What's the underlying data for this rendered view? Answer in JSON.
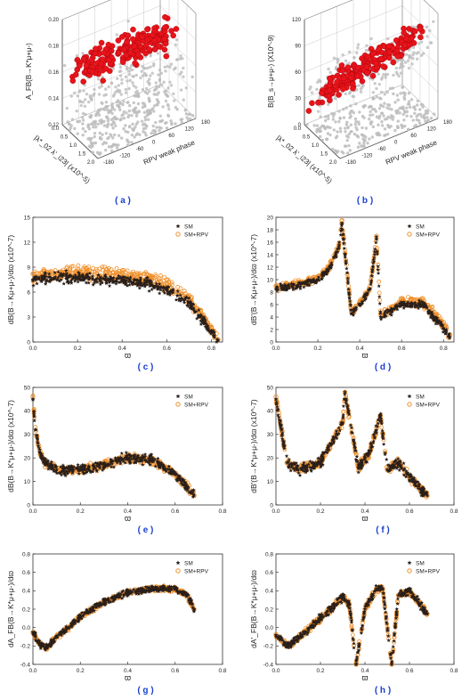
{
  "colors": {
    "sm": "#2a1f1a",
    "rpv": "#f0902a",
    "red_points": "#e8141b",
    "grey_points": "#bdbdbd",
    "caption": "#1a3fd0",
    "axis": "#333333"
  },
  "chart_data": [
    {
      "id": "a",
      "type": "scatter",
      "caption": "( a )",
      "xlabel": "|λ*_02 λ'_i23| (x10^-5)",
      "ylabel": "A_FB(B→K*μ+μ-)",
      "zlabel": "RPV weak phase",
      "x_ticks": [
        "0.0",
        "0.5",
        "1.0",
        "1.5",
        "2.0"
      ],
      "y_ticks": [
        "0.12",
        "0.14",
        "0.16",
        "0.18",
        "0.20"
      ],
      "z_ticks": [
        "-180",
        "-120",
        "-60",
        "0",
        "60",
        "120",
        "180"
      ],
      "series": [
        {
          "role": "allowed",
          "color": "#e8141b",
          "range_y": [
            0.135,
            0.185
          ]
        },
        {
          "role": "scan",
          "color": "#bdbdbd",
          "range_y": [
            0.12,
            0.195
          ]
        }
      ]
    },
    {
      "id": "b",
      "type": "scatter",
      "caption": "( b )",
      "xlabel": "|λ*_02 λ'_i23| (x10^-5)",
      "ylabel": "B(B_s→μ+μ-) (X10^-9)",
      "zlabel": "RPV weak phase",
      "x_ticks": [
        "0.0",
        "0.5",
        "1.0",
        "1.5",
        "2.0"
      ],
      "y_ticks": [
        "0",
        "30",
        "60",
        "90",
        "120"
      ],
      "z_ticks": [
        "-180",
        "-120",
        "-60",
        "0",
        "60",
        "120",
        "180"
      ],
      "series": [
        {
          "role": "allowed",
          "color": "#e8141b",
          "range_y": [
            5,
            105
          ]
        },
        {
          "role": "scan",
          "color": "#bdbdbd",
          "range_y": [
            0,
            120
          ]
        }
      ]
    },
    {
      "id": "c",
      "type": "scatter",
      "caption": "( c )",
      "xlabel": "ϖ",
      "ylabel": "dB(B→Kμ+μ-)/dϖ (x10^-7)",
      "xlim": [
        0.0,
        0.85
      ],
      "ylim": [
        0,
        15
      ],
      "x_ticks": [
        "0.0",
        "0.2",
        "0.4",
        "0.6",
        "0.8"
      ],
      "y_ticks": [
        "0",
        "3",
        "6",
        "9",
        "12",
        "15"
      ],
      "legend": {
        "position": "top-right",
        "entries": [
          "SM",
          "SM+RPV"
        ]
      },
      "series": [
        {
          "name": "SM",
          "marker": "star",
          "color": "#2a1f1a",
          "x": [
            0.0,
            0.1,
            0.2,
            0.3,
            0.4,
            0.5,
            0.6,
            0.7,
            0.75,
            0.8,
            0.83
          ],
          "y": [
            7.5,
            7.8,
            7.8,
            7.6,
            7.4,
            7.1,
            6.3,
            4.7,
            3.0,
            1.2,
            0.2
          ]
        },
        {
          "name": "SM+RPV",
          "marker": "circle",
          "color": "#f0902a",
          "x": [
            0.0,
            0.1,
            0.2,
            0.3,
            0.4,
            0.5,
            0.6,
            0.7,
            0.75,
            0.8,
            0.83
          ],
          "y": [
            8.2,
            8.6,
            8.8,
            8.8,
            8.6,
            8.2,
            7.5,
            5.6,
            3.8,
            1.8,
            0.3
          ]
        }
      ]
    },
    {
      "id": "d",
      "type": "scatter",
      "caption": "( d )",
      "xlabel": "ϖ",
      "ylabel": "dB'(B→Kμ+μ-)/dϖ (x10^-7)",
      "xlim": [
        0.0,
        0.85
      ],
      "ylim": [
        0,
        20
      ],
      "x_ticks": [
        "0.0",
        "0.2",
        "0.4",
        "0.6",
        "0.8"
      ],
      "y_ticks": [
        "0",
        "2",
        "4",
        "6",
        "8",
        "10",
        "12",
        "14",
        "16",
        "18",
        "20"
      ],
      "legend": {
        "position": "top-right",
        "entries": [
          "SM",
          "SM+RPV"
        ]
      },
      "series": [
        {
          "name": "SM",
          "marker": "star",
          "color": "#2a1f1a",
          "x": [
            0.0,
            0.1,
            0.2,
            0.25,
            0.3,
            0.315,
            0.36,
            0.4,
            0.45,
            0.48,
            0.5,
            0.55,
            0.6,
            0.7,
            0.8,
            0.83
          ],
          "y": [
            8.5,
            9.0,
            10.0,
            11.5,
            15.0,
            19.0,
            4.5,
            6.0,
            8.5,
            16.5,
            4.0,
            5.0,
            6.0,
            6.0,
            2.2,
            0.8
          ]
        },
        {
          "name": "SM+RPV",
          "marker": "circle",
          "color": "#f0902a",
          "x": [
            0.0,
            0.1,
            0.2,
            0.25,
            0.3,
            0.315,
            0.36,
            0.4,
            0.45,
            0.48,
            0.5,
            0.55,
            0.6,
            0.7,
            0.8,
            0.83
          ],
          "y": [
            9.0,
            9.5,
            10.5,
            12.0,
            15.5,
            19.5,
            5.0,
            6.5,
            9.0,
            17.0,
            4.5,
            5.5,
            6.8,
            7.0,
            3.2,
            1.2
          ]
        }
      ]
    },
    {
      "id": "e",
      "type": "scatter",
      "caption": "( e )",
      "xlabel": "ϖ",
      "ylabel": "dB(B→K*μ+μ-)/dϖ (x10^-7)",
      "xlim": [
        0.0,
        0.8
      ],
      "ylim": [
        0,
        50
      ],
      "x_ticks": [
        "0.0",
        "0.2",
        "0.4",
        "0.6",
        "0.8"
      ],
      "y_ticks": [
        "0",
        "10",
        "20",
        "30",
        "40",
        "50"
      ],
      "legend": {
        "position": "top-right",
        "entries": [
          "SM",
          "SM+RPV"
        ]
      },
      "series": [
        {
          "name": "SM",
          "marker": "star",
          "color": "#2a1f1a",
          "x": [
            0.0,
            0.01,
            0.03,
            0.05,
            0.1,
            0.2,
            0.3,
            0.4,
            0.5,
            0.6,
            0.65,
            0.68
          ],
          "y": [
            45,
            32,
            22,
            18,
            15,
            15,
            17,
            20,
            19,
            13,
            8,
            4
          ]
        },
        {
          "name": "SM+RPV",
          "marker": "circle",
          "color": "#f0902a",
          "x": [
            0.0,
            0.01,
            0.03,
            0.05,
            0.1,
            0.2,
            0.3,
            0.4,
            0.5,
            0.6,
            0.65,
            0.68
          ],
          "y": [
            46,
            33,
            23,
            18,
            15,
            15,
            17,
            20,
            19,
            13,
            8,
            4
          ]
        }
      ]
    },
    {
      "id": "f",
      "type": "scatter",
      "caption": "( f )",
      "xlabel": "ϖ",
      "ylabel": "dB'(B→K*μ+μ-)/dϖ (x10^-7)",
      "xlim": [
        0.0,
        0.8
      ],
      "ylim": [
        0,
        50
      ],
      "x_ticks": [
        "0.0",
        "0.2",
        "0.4",
        "0.6",
        "0.8"
      ],
      "y_ticks": [
        "0",
        "10",
        "20",
        "30",
        "40",
        "50"
      ],
      "legend": {
        "position": "top-right",
        "entries": [
          "SM",
          "SM+RPV"
        ]
      },
      "series": [
        {
          "name": "SM",
          "marker": "star",
          "color": "#2a1f1a",
          "x": [
            0.0,
            0.05,
            0.1,
            0.2,
            0.3,
            0.31,
            0.37,
            0.42,
            0.47,
            0.5,
            0.55,
            0.6,
            0.68
          ],
          "y": [
            45,
            18,
            15,
            18,
            35,
            48,
            16,
            22,
            38,
            15,
            18,
            12,
            4
          ]
        },
        {
          "name": "SM+RPV",
          "marker": "circle",
          "color": "#f0902a",
          "x": [
            0.0,
            0.05,
            0.1,
            0.2,
            0.3,
            0.31,
            0.37,
            0.42,
            0.47,
            0.5,
            0.55,
            0.6,
            0.68
          ],
          "y": [
            46,
            18,
            15,
            18,
            35,
            48,
            16,
            22,
            38,
            15,
            18,
            12,
            4
          ]
        }
      ]
    },
    {
      "id": "g",
      "type": "scatter",
      "caption": "( g )",
      "xlabel": "ϖ",
      "ylabel": "dA_FB(B→K*μ+μ-)/dϖ",
      "xlim": [
        0.0,
        0.8
      ],
      "ylim": [
        -0.4,
        0.8
      ],
      "x_ticks": [
        "0.0",
        "0.2",
        "0.4",
        "0.6",
        "0.8"
      ],
      "y_ticks": [
        "-0.4",
        "-0.2",
        "0.0",
        "0.2",
        "0.4",
        "0.6",
        "0.8"
      ],
      "legend": {
        "position": "top-right",
        "entries": [
          "SM",
          "SM+RPV"
        ]
      },
      "series": [
        {
          "name": "SM",
          "marker": "star",
          "color": "#2a1f1a",
          "x": [
            0.0,
            0.03,
            0.06,
            0.1,
            0.15,
            0.2,
            0.3,
            0.4,
            0.5,
            0.6,
            0.65,
            0.68
          ],
          "y": [
            -0.05,
            -0.18,
            -0.22,
            -0.1,
            0.0,
            0.12,
            0.28,
            0.38,
            0.42,
            0.42,
            0.35,
            0.2
          ]
        },
        {
          "name": "SM+RPV",
          "marker": "circle",
          "color": "#f0902a",
          "x": [
            0.0,
            0.03,
            0.06,
            0.1,
            0.15,
            0.2,
            0.3,
            0.4,
            0.5,
            0.6,
            0.65,
            0.68
          ],
          "y": [
            -0.05,
            -0.18,
            -0.22,
            -0.1,
            0.0,
            0.12,
            0.28,
            0.38,
            0.42,
            0.42,
            0.35,
            0.2
          ]
        }
      ]
    },
    {
      "id": "h",
      "type": "scatter",
      "caption": "( h )",
      "xlabel": "ϖ",
      "ylabel": "dA'_FB(B→K*μ+μ-)/dϖ",
      "xlim": [
        0.0,
        0.8
      ],
      "ylim": [
        -0.4,
        0.8
      ],
      "x_ticks": [
        "0.0",
        "0.2",
        "0.4",
        "0.6",
        "0.8"
      ],
      "y_ticks": [
        "-0.4",
        "-0.2",
        "0.0",
        "0.2",
        "0.4",
        "0.6",
        "0.8"
      ],
      "legend": {
        "position": "top-right",
        "entries": [
          "SM",
          "SM+RPV"
        ]
      },
      "series": [
        {
          "name": "SM",
          "marker": "star",
          "color": "#2a1f1a",
          "x": [
            0.0,
            0.05,
            0.1,
            0.2,
            0.3,
            0.33,
            0.36,
            0.4,
            0.45,
            0.48,
            0.52,
            0.55,
            0.6,
            0.68
          ],
          "y": [
            -0.08,
            -0.2,
            -0.12,
            0.1,
            0.33,
            0.25,
            -0.4,
            0.2,
            0.42,
            0.42,
            -0.4,
            0.35,
            0.4,
            0.15
          ]
        },
        {
          "name": "SM+RPV",
          "marker": "circle",
          "color": "#f0902a",
          "x": [
            0.0,
            0.05,
            0.1,
            0.2,
            0.3,
            0.33,
            0.36,
            0.4,
            0.45,
            0.48,
            0.52,
            0.55,
            0.6,
            0.68
          ],
          "y": [
            -0.08,
            -0.2,
            -0.12,
            0.1,
            0.33,
            0.25,
            -0.4,
            0.2,
            0.42,
            0.42,
            -0.4,
            0.35,
            0.4,
            0.15
          ]
        }
      ]
    }
  ]
}
